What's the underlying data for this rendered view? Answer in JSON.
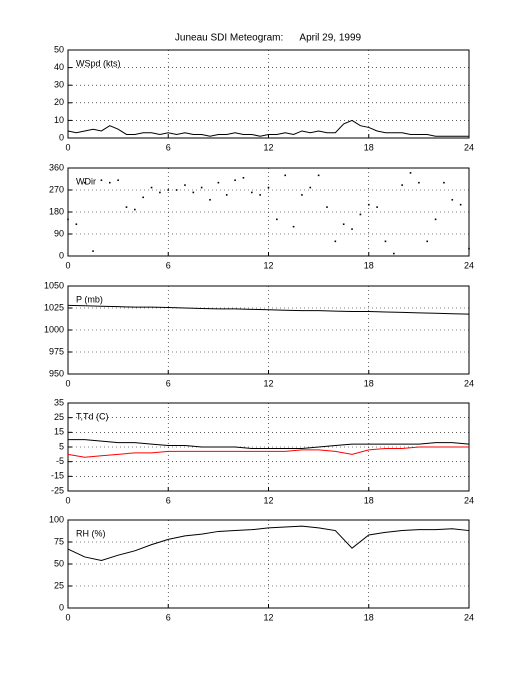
{
  "chart_data": [
    {
      "type": "line",
      "title": "Juneau SDI Meteogram:      April 29, 1999",
      "label": "WSpd (kts)",
      "color": "#000000",
      "grid": true,
      "xlim": [
        0,
        24
      ],
      "xticks": [
        0,
        6,
        12,
        18,
        24
      ],
      "ylim": [
        0,
        50
      ],
      "yticks": [
        0,
        10,
        20,
        30,
        40,
        50
      ],
      "x": [
        0,
        0.5,
        1,
        1.5,
        2,
        2.5,
        3,
        3.5,
        4,
        4.5,
        5,
        5.5,
        6,
        6.5,
        7,
        7.5,
        8,
        8.5,
        9,
        9.5,
        10,
        10.5,
        11,
        11.5,
        12,
        12.5,
        13,
        13.5,
        14,
        14.5,
        15,
        15.5,
        16,
        16.5,
        17,
        17.5,
        18,
        18.5,
        19,
        19.5,
        20,
        20.5,
        21,
        21.5,
        22,
        22.5,
        23,
        23.5,
        24
      ],
      "values": [
        4,
        3,
        4,
        5,
        4,
        7,
        5,
        2,
        2,
        3,
        3,
        2,
        3,
        2,
        3,
        2,
        2,
        1,
        2,
        2,
        3,
        2,
        2,
        1,
        2,
        2,
        3,
        2,
        4,
        3,
        4,
        3,
        3,
        8,
        10,
        7,
        6,
        4,
        3,
        3,
        3,
        2,
        2,
        2,
        1,
        1,
        1,
        1,
        1
      ]
    },
    {
      "type": "scatter",
      "label": "WDir",
      "color": "#000000",
      "grid": true,
      "xlim": [
        0,
        24
      ],
      "xticks": [
        0,
        6,
        12,
        18,
        24
      ],
      "ylim": [
        0,
        360
      ],
      "yticks": [
        0,
        90,
        180,
        270,
        360
      ],
      "x": [
        0,
        0.5,
        1,
        1.5,
        2,
        2.5,
        3,
        3.5,
        4,
        4.5,
        5,
        5.5,
        6,
        6.5,
        7,
        7.5,
        8,
        8.5,
        9,
        9.5,
        10,
        10.5,
        11,
        11.5,
        12,
        12.5,
        13,
        13.5,
        14,
        14.5,
        15,
        15.5,
        16,
        16.5,
        17,
        17.5,
        18,
        18.5,
        19,
        19.5,
        20,
        20.5,
        21,
        21.5,
        22,
        22.5,
        23,
        23.5,
        24
      ],
      "values": [
        150,
        130,
        300,
        20,
        310,
        300,
        310,
        200,
        190,
        240,
        280,
        260,
        270,
        270,
        290,
        260,
        280,
        230,
        300,
        250,
        310,
        320,
        260,
        250,
        280,
        150,
        330,
        120,
        250,
        280,
        330,
        200,
        60,
        130,
        110,
        170,
        210,
        200,
        60,
        10,
        290,
        340,
        300,
        60,
        150,
        300,
        230,
        210,
        30
      ]
    },
    {
      "type": "line",
      "label": "P (mb)",
      "color": "#000000",
      "grid": true,
      "xlim": [
        0,
        24
      ],
      "xticks": [
        0,
        6,
        12,
        18,
        24
      ],
      "ylim": [
        950,
        1050
      ],
      "yticks": [
        950,
        975,
        1000,
        1025,
        1050
      ],
      "x": [
        0,
        1,
        2,
        3,
        4,
        5,
        6,
        7,
        8,
        9,
        10,
        11,
        12,
        13,
        14,
        15,
        16,
        17,
        18,
        19,
        20,
        21,
        22,
        23,
        24
      ],
      "values": [
        1028,
        1027.5,
        1027,
        1026.5,
        1026,
        1026,
        1025.5,
        1025,
        1024.5,
        1024,
        1024,
        1023.5,
        1023,
        1022.5,
        1022,
        1022,
        1021.5,
        1021,
        1021,
        1020.5,
        1020,
        1019.5,
        1019,
        1018.5,
        1018
      ]
    },
    {
      "type": "line",
      "label": "T,Td (C)",
      "grid": true,
      "xlim": [
        0,
        24
      ],
      "xticks": [
        0,
        6,
        12,
        18,
        24
      ],
      "ylim": [
        -25,
        35
      ],
      "yticks": [
        -25,
        -15,
        -5,
        5,
        15,
        25,
        35
      ],
      "x": [
        0,
        1,
        2,
        3,
        4,
        5,
        6,
        7,
        8,
        9,
        10,
        11,
        12,
        13,
        14,
        15,
        16,
        17,
        18,
        19,
        20,
        21,
        22,
        23,
        24
      ],
      "series": [
        {
          "color": "#000000",
          "values": [
            10,
            10,
            9,
            8,
            8,
            7,
            6,
            6,
            5,
            5,
            5,
            4,
            4,
            4,
            4,
            5,
            6,
            7,
            7,
            7,
            7,
            7,
            8,
            8,
            7
          ]
        },
        {
          "color": "#ff0000",
          "values": [
            0,
            -2,
            -1,
            0,
            1,
            1,
            2,
            2,
            2,
            2,
            2,
            2,
            2,
            2,
            3,
            3,
            2,
            0,
            3,
            4,
            4,
            5,
            5,
            5,
            5
          ]
        }
      ]
    },
    {
      "type": "line",
      "label": "RH (%)",
      "color": "#000000",
      "grid": true,
      "xlim": [
        0,
        24
      ],
      "xticks": [
        0,
        6,
        12,
        18,
        24
      ],
      "ylim": [
        0,
        100
      ],
      "yticks": [
        0,
        25,
        50,
        75,
        100
      ],
      "x": [
        0,
        1,
        2,
        3,
        4,
        5,
        6,
        7,
        8,
        9,
        10,
        11,
        12,
        13,
        14,
        15,
        16,
        17,
        18,
        19,
        20,
        21,
        22,
        23,
        24
      ],
      "values": [
        67,
        58,
        54,
        60,
        65,
        72,
        78,
        82,
        84,
        87,
        88,
        89,
        91,
        92,
        93,
        91,
        88,
        68,
        83,
        86,
        88,
        89,
        89,
        90,
        88
      ]
    }
  ]
}
